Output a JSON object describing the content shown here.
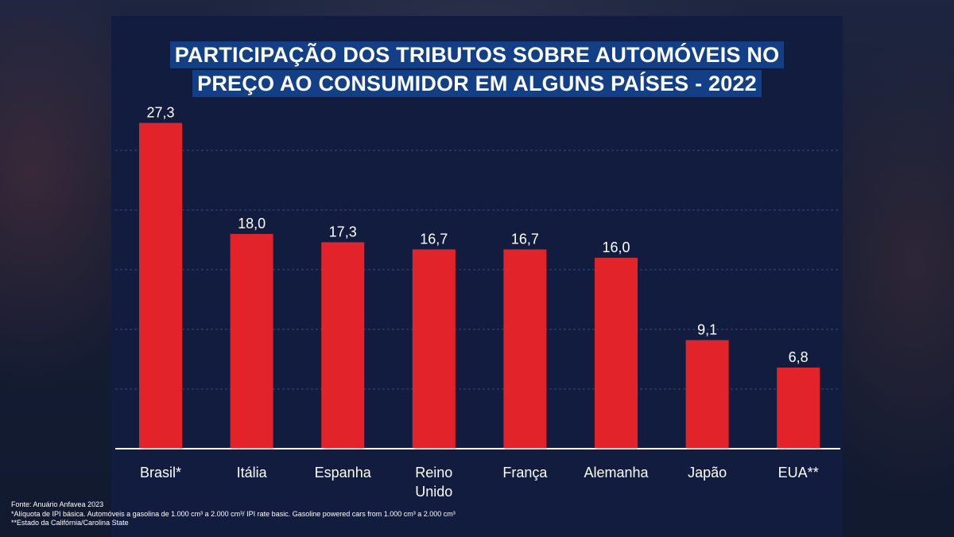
{
  "chart_data": {
    "type": "bar",
    "title_lines": [
      "PARTICIPAÇÃO DOS TRIBUTOS SOBRE AUTOMÓVEIS NO",
      "PREÇO AO CONSUMIDOR EM ALGUNS PAÍSES - 2022"
    ],
    "categories": [
      [
        "Brasil*"
      ],
      [
        "Itália"
      ],
      [
        "Espanha"
      ],
      [
        "Reino",
        "Unido"
      ],
      [
        "França"
      ],
      [
        "Alemanha"
      ],
      [
        "Japão"
      ],
      [
        "EUA**"
      ]
    ],
    "values": [
      27.3,
      18.0,
      17.3,
      16.7,
      16.7,
      16.0,
      9.1,
      6.8
    ],
    "value_labels": [
      "27,3",
      "18,0",
      "17,3",
      "16,7",
      "16,7",
      "16,0",
      "9,1",
      "6,8"
    ],
    "ylim": [
      0,
      30
    ],
    "grid_values": [
      5,
      10,
      15,
      20,
      25
    ],
    "grid": true,
    "y_axis_labels": false,
    "colors": {
      "bar": "#e3232a",
      "grid": "#2f4c7e",
      "baseline": "#ffffff",
      "text": "#ffffff",
      "title_bg": "#123f86"
    }
  },
  "footnotes": [
    "Fonte: Anuário Anfavea 2023",
    "*Alíquota de IPI básica. Automóveis a gasolina de 1.000 cm³ a 2.000 cm³/ IPI rate basic. Gasoline powered cars from 1.000 cm³ a 2.000 cm³",
    "**Estado da Califórnia/Carolina State"
  ]
}
